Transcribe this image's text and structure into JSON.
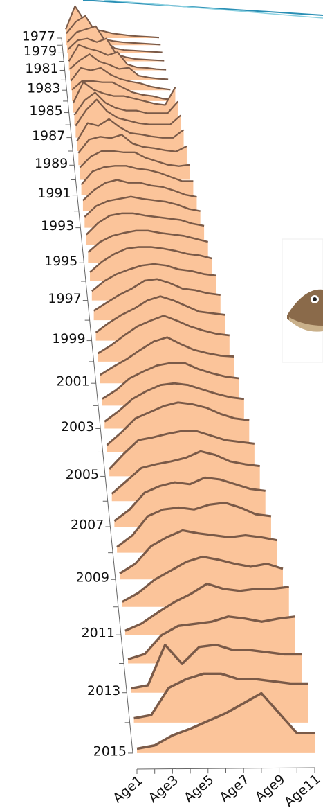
{
  "chart_data": {
    "type": "ridge",
    "categories": [
      "Age1",
      null,
      "Age3",
      null,
      "Age5",
      null,
      "Age7",
      null,
      "Age9",
      null,
      "Age11"
    ],
    "color": "#fbc49a",
    "series": [
      {
        "name": "1977",
        "values": [
          15,
          55,
          30,
          15,
          12,
          8,
          6,
          4,
          3,
          2,
          1
        ]
      },
      {
        "name": null,
        "values": [
          20,
          40,
          50,
          25,
          10,
          7,
          5,
          4,
          3,
          2,
          1
        ]
      },
      {
        "name": "1979",
        "values": [
          18,
          35,
          40,
          45,
          20,
          8,
          5,
          4,
          3,
          2,
          1
        ]
      },
      {
        "name": null,
        "values": [
          20,
          35,
          38,
          32,
          38,
          12,
          7,
          4,
          3,
          2,
          1
        ]
      },
      {
        "name": "1981",
        "values": [
          15,
          42,
          36,
          32,
          25,
          30,
          10,
          5,
          4,
          2,
          1
        ]
      },
      {
        "name": null,
        "values": [
          18,
          32,
          42,
          30,
          25,
          18,
          20,
          7,
          4,
          2,
          1
        ]
      },
      {
        "name": "1983",
        "values": [
          15,
          36,
          32,
          36,
          25,
          18,
          14,
          11,
          6,
          3,
          1
        ]
      },
      {
        "name": null,
        "values": [
          18,
          32,
          32,
          30,
          30,
          22,
          14,
          10,
          8,
          4,
          2
        ]
      },
      {
        "name": "1985",
        "values": [
          15,
          48,
          36,
          30,
          26,
          26,
          22,
          18,
          14,
          12,
          40
        ]
      },
      {
        "name": null,
        "values": [
          15,
          38,
          50,
          34,
          26,
          22,
          22,
          18,
          18,
          18,
          36
        ]
      },
      {
        "name": "1987",
        "values": [
          18,
          42,
          58,
          40,
          30,
          26,
          22,
          20,
          20,
          20,
          34
        ]
      },
      {
        "name": null,
        "values": [
          15,
          42,
          38,
          48,
          36,
          27,
          25,
          22,
          20,
          20,
          32
        ]
      },
      {
        "name": "1989",
        "values": [
          18,
          38,
          42,
          40,
          45,
          32,
          27,
          25,
          22,
          20,
          28
        ]
      },
      {
        "name": null,
        "values": [
          18,
          34,
          42,
          42,
          40,
          40,
          32,
          27,
          22,
          20,
          22
        ]
      },
      {
        "name": "1991",
        "values": [
          15,
          34,
          40,
          42,
          42,
          38,
          36,
          32,
          26,
          20,
          20
        ]
      },
      {
        "name": null,
        "values": [
          15,
          30,
          40,
          44,
          40,
          40,
          36,
          34,
          29,
          23,
          20
        ]
      },
      {
        "name": "1993",
        "values": [
          15,
          30,
          37,
          40,
          43,
          40,
          38,
          36,
          32,
          26,
          23
        ]
      },
      {
        "name": null,
        "values": [
          14,
          30,
          40,
          43,
          43,
          40,
          38,
          36,
          34,
          29,
          26
        ]
      },
      {
        "name": "1995",
        "values": [
          14,
          28,
          36,
          40,
          43,
          43,
          40,
          38,
          36,
          32,
          28
        ]
      },
      {
        "name": null,
        "values": [
          12,
          26,
          36,
          43,
          45,
          45,
          43,
          40,
          36,
          34,
          30
        ]
      },
      {
        "name": "1997",
        "values": [
          12,
          25,
          34,
          40,
          45,
          47,
          45,
          40,
          38,
          34,
          32
        ]
      },
      {
        "name": null,
        "values": [
          12,
          22,
          32,
          40,
          50,
          52,
          47,
          40,
          38,
          34,
          32
        ]
      },
      {
        "name": "1999",
        "values": [
          10,
          22,
          32,
          40,
          50,
          55,
          50,
          43,
          36,
          34,
          32
        ]
      },
      {
        "name": null,
        "values": [
          10,
          20,
          32,
          43,
          50,
          56,
          50,
          43,
          38,
          34,
          32
        ]
      },
      {
        "name": "2001",
        "values": [
          10,
          20,
          29,
          40,
          50,
          55,
          47,
          40,
          36,
          33,
          32
        ]
      },
      {
        "name": null,
        "values": [
          8,
          18,
          32,
          40,
          47,
          50,
          50,
          43,
          38,
          34,
          32
        ]
      },
      {
        "name": "2003",
        "values": [
          8,
          20,
          34,
          43,
          50,
          52,
          50,
          45,
          40,
          36,
          34
        ]
      },
      {
        "name": null,
        "values": [
          8,
          22,
          38,
          45,
          52,
          56,
          54,
          50,
          43,
          38,
          36
        ]
      },
      {
        "name": "2005",
        "values": [
          8,
          25,
          40,
          43,
          47,
          50,
          50,
          45,
          40,
          38,
          36
        ]
      },
      {
        "name": null,
        "values": [
          8,
          22,
          36,
          40,
          43,
          47,
          54,
          50,
          43,
          40,
          38
        ]
      },
      {
        "name": "2007",
        "values": [
          6,
          18,
          36,
          43,
          47,
          45,
          52,
          50,
          45,
          40,
          38
        ]
      },
      {
        "name": null,
        "values": [
          6,
          18,
          38,
          45,
          47,
          45,
          50,
          52,
          47,
          40,
          38
        ]
      },
      {
        "name": "2009",
        "values": [
          6,
          16,
          34,
          43,
          50,
          47,
          45,
          43,
          45,
          43,
          40
        ]
      },
      {
        "name": null,
        "values": [
          5,
          14,
          27,
          36,
          45,
          50,
          47,
          43,
          40,
          43,
          38
        ]
      },
      {
        "name": "2011",
        "values": [
          4,
          11,
          22,
          32,
          40,
          50,
          45,
          43,
          45,
          45,
          47
        ]
      },
      {
        "name": null,
        "values": [
          4,
          9,
          27,
          36,
          38,
          40,
          45,
          43,
          40,
          43,
          45
        ]
      },
      {
        "name": "2013",
        "values": [
          4,
          7,
          45,
          27,
          43,
          45,
          40,
          40,
          38,
          36,
          36
        ]
      },
      {
        "name": null,
        "values": [
          4,
          7,
          32,
          40,
          45,
          45,
          40,
          40,
          38,
          36,
          36
        ]
      },
      {
        "name": "2015",
        "values": [
          4,
          7,
          16,
          22,
          29,
          36,
          45,
          54,
          36,
          18,
          18
        ]
      }
    ]
  }
}
